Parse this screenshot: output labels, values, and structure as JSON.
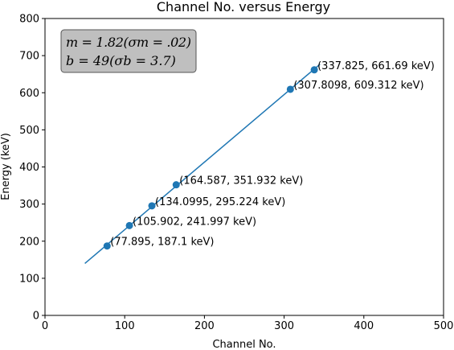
{
  "chart_data": {
    "type": "scatter",
    "title": "Channel No. versus Energy",
    "xlabel": "Channel No.",
    "ylabel": "Energy (keV)",
    "xlim": [
      0,
      500
    ],
    "ylim": [
      0,
      800
    ],
    "xticks": [
      0,
      100,
      200,
      300,
      400,
      500
    ],
    "yticks": [
      0,
      100,
      200,
      300,
      400,
      500,
      600,
      700,
      800
    ],
    "grid": false,
    "legend": "none",
    "series": [
      {
        "points": [
          {
            "x": 77.895,
            "y": 187.1,
            "label": "(77.895, 187.1 keV)"
          },
          {
            "x": 105.902,
            "y": 241.997,
            "label": "(105.902, 241.997 keV)"
          },
          {
            "x": 134.0995,
            "y": 295.224,
            "label": "(134.0995, 295.224 keV)"
          },
          {
            "x": 164.587,
            "y": 351.932,
            "label": "(164.587, 351.932 keV)"
          },
          {
            "x": 307.8098,
            "y": 609.312,
            "label": "(307.8098, 609.312 keV)"
          },
          {
            "x": 337.825,
            "y": 661.69,
            "label": "(337.825, 661.69 keV)"
          }
        ],
        "color": "#1f77b4"
      }
    ],
    "fit_line": {
      "slope": 1.82,
      "intercept": 49,
      "x_range": [
        50,
        345
      ],
      "color": "#1f77b4"
    },
    "fit_box": {
      "line1": "m = 1.82(σm = .02)",
      "line2": "b = 49(σb = 3.7)",
      "background": "#bfbfbf",
      "placement": "top-left"
    }
  }
}
